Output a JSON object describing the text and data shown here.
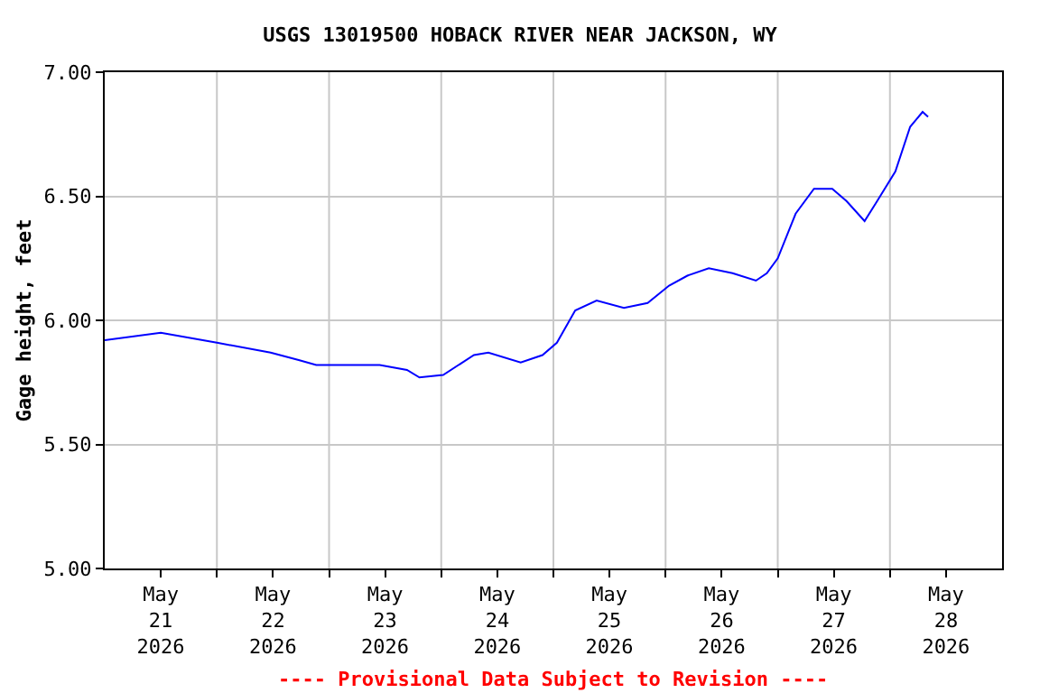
{
  "chart_data": {
    "type": "line",
    "title": "USGS 13019500 HOBACK RIVER NEAR JACKSON, WY",
    "ylabel": "Gage height, feet",
    "annotations": [
      "---- Provisional Data Subject to Revision ----"
    ],
    "series": [
      {
        "color": "#0000ff",
        "x": [
          "2026-05-21T00:00",
          "2026-05-21T12:00",
          "2026-05-22T00:00",
          "2026-05-22T11:30",
          "2026-05-22T17:30",
          "2026-05-22T21:15",
          "2026-05-23T10:50",
          "2026-05-23T16:40",
          "2026-05-23T19:20",
          "2026-05-24T00:25",
          "2026-05-24T07:00",
          "2026-05-24T10:05",
          "2026-05-24T17:00",
          "2026-05-24T21:40",
          "2026-05-25T00:45",
          "2026-05-25T04:40",
          "2026-05-25T09:15",
          "2026-05-25T15:05",
          "2026-05-25T20:10",
          "2026-05-26T00:45",
          "2026-05-26T04:40",
          "2026-05-26T09:15",
          "2026-05-26T14:20",
          "2026-05-26T19:20",
          "2026-05-26T21:40",
          "2026-05-27T00:00",
          "2026-05-27T03:50",
          "2026-05-27T07:45",
          "2026-05-27T11:40",
          "2026-05-27T14:45",
          "2026-05-27T18:35",
          "2026-05-27T21:15",
          "2026-05-28T01:10",
          "2026-05-28T04:20",
          "2026-05-28T07:00",
          "2026-05-28T08:10"
        ],
        "values": [
          5.92,
          5.95,
          5.91,
          5.87,
          5.84,
          5.82,
          5.82,
          5.8,
          5.77,
          5.78,
          5.86,
          5.87,
          5.83,
          5.86,
          5.91,
          6.04,
          6.08,
          6.05,
          6.07,
          6.14,
          6.18,
          6.21,
          6.19,
          6.16,
          6.19,
          6.25,
          6.43,
          6.53,
          6.53,
          6.48,
          6.4,
          6.48,
          6.6,
          6.78,
          6.84,
          6.82
        ]
      }
    ],
    "xlim": [
      "2026-05-21T00:00",
      "2026-05-29T00:00"
    ],
    "xticks": [
      {
        "value": "2026-05-21T12:00",
        "label": "May\n21\n2026"
      },
      {
        "value": "2026-05-22T12:00",
        "label": "May\n22\n2026"
      },
      {
        "value": "2026-05-23T12:00",
        "label": "May\n23\n2026"
      },
      {
        "value": "2026-05-24T12:00",
        "label": "May\n24\n2026"
      },
      {
        "value": "2026-05-25T12:00",
        "label": "May\n25\n2026"
      },
      {
        "value": "2026-05-26T12:00",
        "label": "May\n26\n2026"
      },
      {
        "value": "2026-05-27T12:00",
        "label": "May\n27\n2026"
      },
      {
        "value": "2026-05-28T12:00",
        "label": "May\n28\n2026"
      },
      {
        "value": "2026-05-22T00:00",
        "label": null
      },
      {
        "value": "2026-05-23T00:00",
        "label": null
      },
      {
        "value": "2026-05-24T00:00",
        "label": null
      },
      {
        "value": "2026-05-25T00:00",
        "label": null
      },
      {
        "value": "2026-05-26T00:00",
        "label": null
      },
      {
        "value": "2026-05-27T00:00",
        "label": null
      },
      {
        "value": "2026-05-28T00:00",
        "label": null
      }
    ],
    "ylim": [
      5.0,
      7.0
    ],
    "yticks": [
      {
        "value": 5.0,
        "label": "5.00"
      },
      {
        "value": 5.5,
        "label": "5.50"
      },
      {
        "value": 6.0,
        "label": "6.00"
      },
      {
        "value": 6.5,
        "label": "6.50"
      },
      {
        "value": 7.0,
        "label": "7.00"
      }
    ],
    "grid": true
  }
}
